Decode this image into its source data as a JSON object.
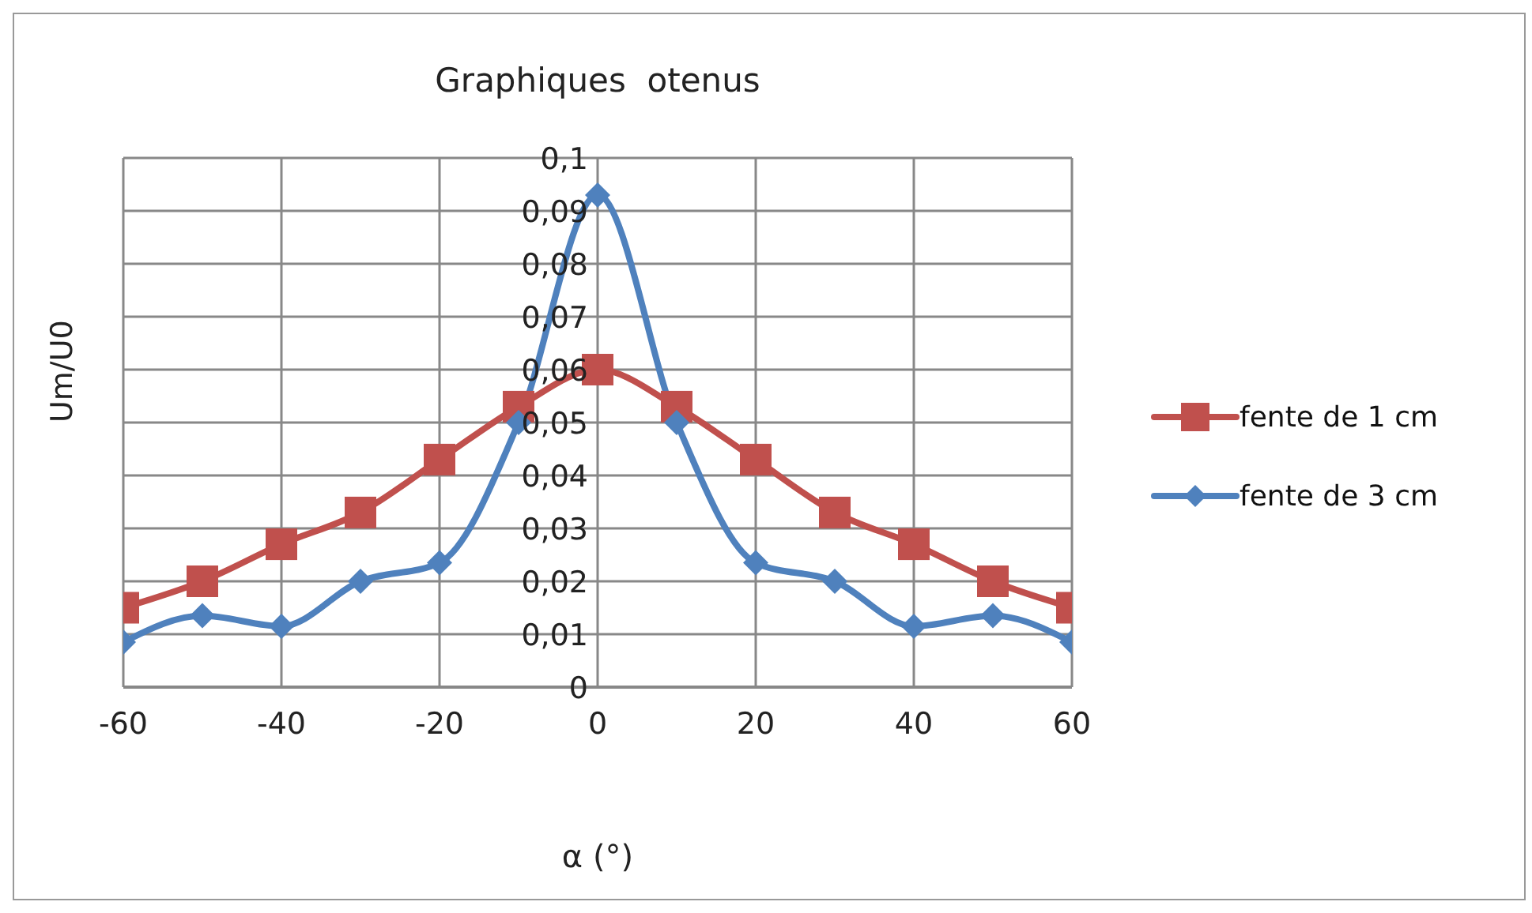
{
  "chart_data": {
    "type": "line",
    "title": "Graphiques  otenus",
    "xlabel": "α (°)",
    "ylabel": "Um/U0",
    "x": [
      -60,
      -50,
      -40,
      -30,
      -20,
      -10,
      0,
      10,
      20,
      30,
      40,
      50,
      60
    ],
    "series": [
      {
        "name": "fente de 1 cm",
        "color": "#c0504d",
        "marker": "square",
        "values": [
          0.015,
          0.02,
          0.027,
          0.033,
          0.043,
          0.053,
          0.06,
          0.053,
          0.043,
          0.033,
          0.027,
          0.02,
          0.015
        ]
      },
      {
        "name": "fente de 3 cm",
        "color": "#4f81bd",
        "marker": "diamond",
        "values": [
          0.0085,
          0.0135,
          0.0115,
          0.02,
          0.0235,
          0.05,
          0.093,
          0.05,
          0.0235,
          0.02,
          0.0115,
          0.0135,
          0.0085
        ]
      }
    ],
    "xlim": [
      -60,
      60
    ],
    "xticks": [
      -60,
      -40,
      -20,
      0,
      20,
      40,
      60
    ],
    "ylim": [
      0,
      0.1
    ],
    "yticks": [
      {
        "value": 0,
        "label": "0"
      },
      {
        "value": 0.01,
        "label": "0,01"
      },
      {
        "value": 0.02,
        "label": "0,02"
      },
      {
        "value": 0.03,
        "label": "0,03"
      },
      {
        "value": 0.04,
        "label": "0,04"
      },
      {
        "value": 0.05,
        "label": "0,05"
      },
      {
        "value": 0.06,
        "label": "0,06"
      },
      {
        "value": 0.07,
        "label": "0,07"
      },
      {
        "value": 0.08,
        "label": "0,08"
      },
      {
        "value": 0.09,
        "label": "0,09"
      },
      {
        "value": 0.1,
        "label": "0,1"
      }
    ],
    "grid": true,
    "legend": "right",
    "line_style": "solid"
  }
}
